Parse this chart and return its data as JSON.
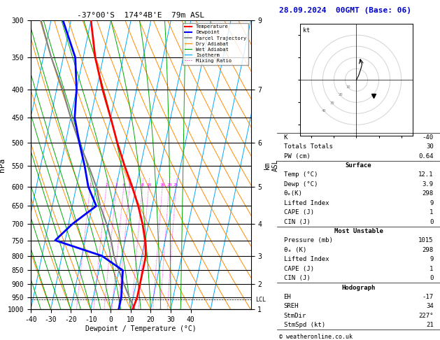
{
  "title_left": "-37°00'S  174°4B'E  79m ASL",
  "title_right": "28.09.2024  00GMT (Base: 06)",
  "xlabel": "Dewpoint / Temperature (°C)",
  "ylabel_left": "hPa",
  "xlim": [
    -40,
    40
  ],
  "pressure_ticks": [
    300,
    350,
    400,
    450,
    500,
    550,
    600,
    650,
    700,
    750,
    800,
    850,
    900,
    950,
    1000
  ],
  "temp_color": "#ff0000",
  "dewp_color": "#0000ff",
  "parcel_color": "#808080",
  "dry_adiabat_color": "#ff8c00",
  "wet_adiabat_color": "#00aa00",
  "isotherm_color": "#00aaff",
  "mixing_ratio_color": "#ff00ff",
  "background_color": "#ffffff",
  "temp_data": {
    "pressure": [
      300,
      350,
      400,
      450,
      500,
      550,
      600,
      650,
      700,
      750,
      800,
      850,
      900,
      950,
      1000
    ],
    "temp_c": [
      -40,
      -34,
      -27,
      -20,
      -14,
      -8,
      -2,
      3,
      7,
      10,
      12,
      12,
      12,
      12,
      11
    ]
  },
  "dewp_data": {
    "pressure": [
      300,
      350,
      400,
      450,
      500,
      550,
      600,
      650,
      700,
      750,
      800,
      850,
      900,
      950,
      1000
    ],
    "dewp_c": [
      -54,
      -44,
      -40,
      -38,
      -33,
      -28,
      -24,
      -18,
      -28,
      -35,
      -10,
      2,
      3,
      4,
      4
    ]
  },
  "parcel_data": {
    "pressure": [
      1000,
      950,
      900,
      850,
      800,
      750,
      700,
      650,
      600,
      550,
      500,
      450,
      400,
      350,
      300
    ],
    "temp_c": [
      12,
      8,
      4,
      0,
      -4,
      -7,
      -11,
      -16,
      -20,
      -26,
      -33,
      -40,
      -47,
      -56,
      -65
    ]
  },
  "surface": {
    "temp": 12.1,
    "dewp": 3.9,
    "theta_e": 298,
    "lifted_index": 9,
    "cape": 1,
    "cin": 0
  },
  "indices": {
    "K": -40,
    "totals_totals": 30,
    "PW_cm": 0.64
  },
  "most_unstable": {
    "pressure_mb": 1015,
    "theta_e": 298,
    "lifted_index": 9,
    "cape": 1,
    "cin": 0
  },
  "hodograph": {
    "EH": -17,
    "SREH": 34,
    "StmDir": 227,
    "StmSpd_kt": 21
  },
  "lcl_pressure": 960,
  "mixing_ratio_lines": [
    1,
    2,
    3,
    4,
    5,
    8,
    10,
    16,
    20,
    25
  ],
  "km_ticks": {
    "pressure": [
      300,
      400,
      500,
      600,
      700,
      800,
      900,
      1000
    ],
    "km": [
      9,
      7,
      6,
      5,
      4,
      3,
      2,
      1
    ]
  },
  "skew": 25
}
